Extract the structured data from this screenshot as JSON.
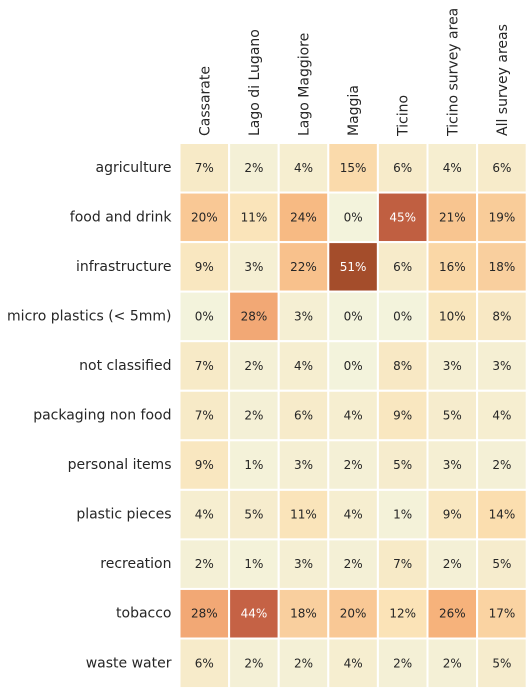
{
  "chart_data": {
    "type": "heatmap",
    "columns": [
      "Cassarate",
      "Lago di Lugano",
      "Lago Maggiore",
      "Maggia",
      "Ticino",
      "Ticino survey area",
      "All survey areas"
    ],
    "rows": [
      "agriculture",
      "food and drink",
      "infrastructure",
      "micro plastics (< 5mm)",
      "not classified",
      "packaging non food",
      "personal items",
      "plastic pieces",
      "recreation",
      "tobacco",
      "waste water"
    ],
    "values": [
      [
        7,
        2,
        4,
        15,
        6,
        4,
        6
      ],
      [
        20,
        11,
        24,
        0,
        45,
        21,
        19
      ],
      [
        9,
        3,
        22,
        51,
        6,
        16,
        18
      ],
      [
        0,
        28,
        3,
        0,
        0,
        10,
        8
      ],
      [
        7,
        2,
        4,
        0,
        8,
        3,
        3
      ],
      [
        7,
        2,
        6,
        4,
        9,
        5,
        4
      ],
      [
        9,
        1,
        3,
        2,
        5,
        3,
        2
      ],
      [
        4,
        5,
        11,
        4,
        1,
        9,
        14
      ],
      [
        2,
        1,
        3,
        2,
        7,
        2,
        5
      ],
      [
        28,
        44,
        18,
        20,
        12,
        26,
        17
      ],
      [
        6,
        2,
        2,
        4,
        2,
        2,
        5
      ]
    ],
    "value_format": "percent",
    "vlim": [
      0,
      51
    ],
    "colormap": [
      "#f3f3dc",
      "#fbe2b5",
      "#f7b57c",
      "#e0735a",
      "#a44d2b"
    ],
    "grid_line_color": "#ffffff",
    "colorbar": false
  }
}
